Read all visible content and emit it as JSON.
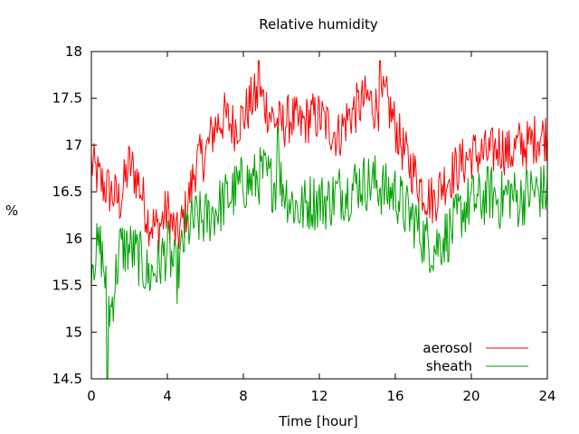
{
  "chart_data": {
    "type": "line",
    "title": "Relative humidity",
    "xlabel": "Time [hour]",
    "ylabel": "%",
    "xlim": [
      0,
      24
    ],
    "ylim": [
      14.5,
      18
    ],
    "xticks": [
      0,
      4,
      8,
      12,
      16,
      20,
      24
    ],
    "yticks": [
      14.5,
      15,
      15.5,
      16,
      16.5,
      17,
      17.5,
      18
    ],
    "grid": false,
    "legend_position": "bottom-right",
    "x": [
      0,
      0.5,
      1,
      1.5,
      2,
      2.5,
      3,
      3.5,
      4,
      4.5,
      5,
      5.5,
      6,
      6.5,
      7,
      7.5,
      8,
      8.5,
      9,
      9.5,
      10,
      10.5,
      11,
      11.5,
      12,
      12.5,
      13,
      13.5,
      14,
      14.5,
      15,
      15.5,
      16,
      16.5,
      17,
      17.5,
      18,
      18.5,
      19,
      19.5,
      20,
      20.5,
      21,
      21.5,
      22,
      22.5,
      23,
      23.5,
      24
    ],
    "series": [
      {
        "name": "aerosol",
        "color": "#ff0000",
        "values": [
          16.8,
          16.6,
          16.5,
          16.4,
          16.8,
          16.6,
          16.2,
          16.1,
          16.3,
          16.0,
          16.3,
          16.8,
          16.9,
          17.2,
          17.3,
          17.2,
          17.3,
          17.5,
          17.5,
          17.3,
          17.2,
          17.3,
          17.2,
          17.3,
          17.3,
          17.2,
          17.1,
          17.3,
          17.4,
          17.5,
          17.4,
          17.5,
          17.2,
          16.9,
          16.7,
          16.5,
          16.4,
          16.6,
          16.7,
          16.8,
          16.9,
          16.9,
          16.9,
          17.0,
          16.9,
          17.0,
          17.0,
          17.1,
          17.1
        ],
        "detail": {
          "min": 15.8,
          "max": 17.9
        }
      },
      {
        "name": "sheath",
        "color": "#00a000",
        "values": [
          15.8,
          15.9,
          15.2,
          15.9,
          15.9,
          15.8,
          15.6,
          15.7,
          15.9,
          15.6,
          16.1,
          16.2,
          16.2,
          16.3,
          16.4,
          16.5,
          16.6,
          16.6,
          16.7,
          16.6,
          16.6,
          16.4,
          16.3,
          16.4,
          16.4,
          16.4,
          16.5,
          16.5,
          16.6,
          16.6,
          16.6,
          16.5,
          16.5,
          16.3,
          16.2,
          16.0,
          15.9,
          16.0,
          16.1,
          16.3,
          16.4,
          16.4,
          16.5,
          16.4,
          16.5,
          16.4,
          16.5,
          16.5,
          16.5
        ],
        "detail": {
          "min": 14.5,
          "max": 17.2
        }
      }
    ]
  }
}
